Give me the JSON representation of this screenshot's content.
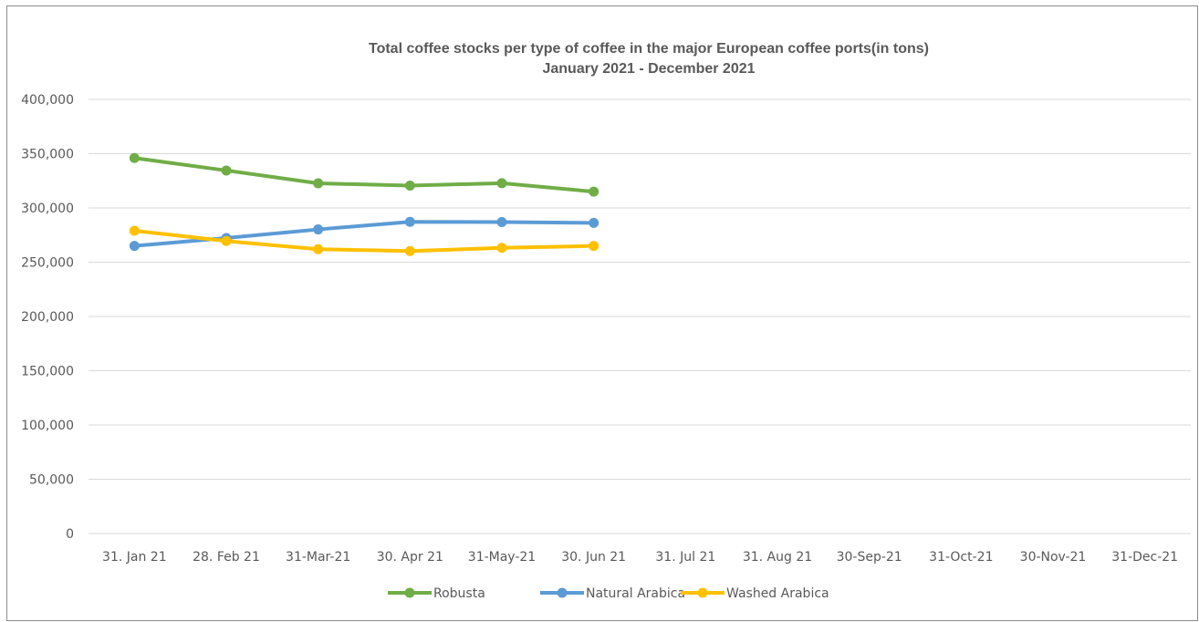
{
  "chart_data": {
    "type": "line",
    "title": "Total coffee stocks per type of coffee in the major European coffee ports(in tons)",
    "subtitle": "January 2021 - December 2021",
    "categories": [
      "31. Jan 21",
      "28. Feb 21",
      "31-Mar-21",
      "30. Apr 21",
      "31-May-21",
      "30. Jun 21",
      "31. Jul 21",
      "31. Aug 21",
      "30-Sep-21",
      "31-Oct-21",
      "30-Nov-21",
      "31-Dec-21"
    ],
    "y_ticks": [
      "0",
      "50,000",
      "100,000",
      "150,000",
      "200,000",
      "250,000",
      "300,000",
      "350,000",
      "400,000"
    ],
    "ylim": [
      0,
      400000
    ],
    "grid": true,
    "legend_position": "bottom",
    "series": [
      {
        "name": "Robusta",
        "color": "#70ad47",
        "values": [
          346000,
          334500,
          322700,
          320600,
          322800,
          315000,
          null,
          null,
          null,
          null,
          null,
          null
        ]
      },
      {
        "name": "Natural Arabica",
        "color": "#5b9bd5",
        "values": [
          265000,
          272300,
          280200,
          287200,
          287000,
          286200,
          null,
          null,
          null,
          null,
          null,
          null
        ]
      },
      {
        "name": "Washed Arabica",
        "color": "#ffc000",
        "values": [
          279000,
          269500,
          262000,
          260300,
          263200,
          265000,
          null,
          null,
          null,
          null,
          null,
          null
        ]
      }
    ]
  }
}
